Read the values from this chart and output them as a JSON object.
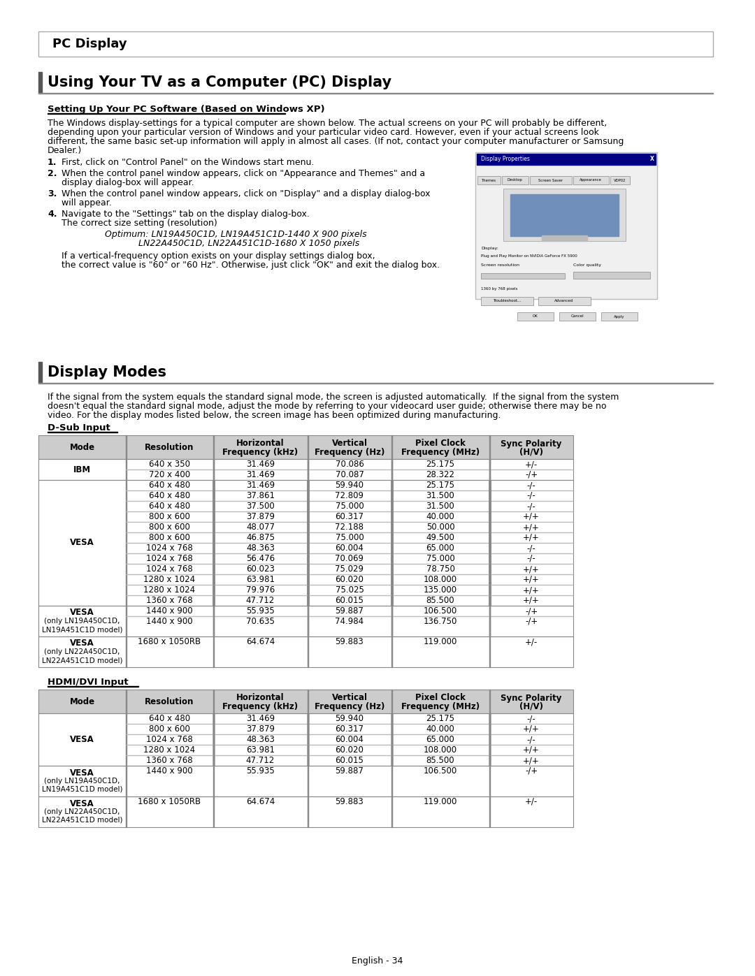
{
  "page_title": "PC Display",
  "section1_title": "Using Your TV as a Computer (PC) Display",
  "subsection1_title": "Setting Up Your PC Software (Based on Windows XP)",
  "paragraph1_lines": [
    "The Windows display-settings for a typical computer are shown below. The actual screens on your PC will probably be different,",
    "depending upon your particular version of Windows and your particular video card. However, even if your actual screens look",
    "different, the same basic set-up information will apply in almost all cases. (If not, contact your computer manufacturer or Samsung",
    "Dealer.)"
  ],
  "numbered_items": [
    [
      "First, click on \"Control Panel\" on the Windows start menu."
    ],
    [
      "When the control panel window appears, click on \"Appearance and Themes\" and a",
      "display dialog-box will appear."
    ],
    [
      "When the control panel window appears, click on \"Display\" and a display dialog-box",
      "will appear."
    ],
    [
      "Navigate to the \"Settings\" tab on the display dialog-box.",
      "The correct size setting (resolution)"
    ]
  ],
  "optimum_line1": "Optimum: LN19A450C1D, LN19A451C1D-1440 X 900 pixels",
  "optimum_line2": "            LN22A450C1D, LN22A451C1D-1680 X 1050 pixels",
  "vfreq_line1": "If a vertical-frequency option exists on your display settings dialog box,",
  "vfreq_line2": "the correct value is \"60\" or \"60 Hz\". Otherwise, just click \"OK\" and exit the dialog box.",
  "section2_title": "Display Modes",
  "display_modes_intro_lines": [
    "If the signal from the system equals the standard signal mode, the screen is adjusted automatically.  If the signal from the system",
    "doesn't equal the standard signal mode, adjust the mode by referring to your videocard user guide; otherwise there may be no",
    "video. For the display modes listed below, the screen image has been optimized during manufacturing."
  ],
  "dsub_label": "D-Sub Input",
  "hdmi_label": "HDMI/DVI Input",
  "table_headers": [
    "Mode",
    "Resolution",
    "Horizontal\nFrequency (kHz)",
    "Vertical\nFrequency (Hz)",
    "Pixel Clock\nFrequency (MHz)",
    "Sync Polarity\n(H/V)"
  ],
  "dsub_groups": [
    {
      "mode_lines": [
        "IBM"
      ],
      "rows": [
        [
          "640 x 350",
          "31.469",
          "70.086",
          "25.175",
          "+/-"
        ],
        [
          "720 x 400",
          "31.469",
          "70.087",
          "28.322",
          "-/+"
        ]
      ]
    },
    {
      "mode_lines": [
        "VESA"
      ],
      "rows": [
        [
          "640 x 480",
          "31.469",
          "59.940",
          "25.175",
          "-/-"
        ],
        [
          "640 x 480",
          "37.861",
          "72.809",
          "31.500",
          "-/-"
        ],
        [
          "640 x 480",
          "37.500",
          "75.000",
          "31.500",
          "-/-"
        ],
        [
          "800 x 600",
          "37.879",
          "60.317",
          "40.000",
          "+/+"
        ],
        [
          "800 x 600",
          "48.077",
          "72.188",
          "50.000",
          "+/+"
        ],
        [
          "800 x 600",
          "46.875",
          "75.000",
          "49.500",
          "+/+"
        ],
        [
          "1024 x 768",
          "48.363",
          "60.004",
          "65.000",
          "-/-"
        ],
        [
          "1024 x 768",
          "56.476",
          "70.069",
          "75.000",
          "-/-"
        ],
        [
          "1024 x 768",
          "60.023",
          "75.029",
          "78.750",
          "+/+"
        ],
        [
          "1280 x 1024",
          "63.981",
          "60.020",
          "108.000",
          "+/+"
        ],
        [
          "1280 x 1024",
          "79.976",
          "75.025",
          "135.000",
          "+/+"
        ],
        [
          "1360 x 768",
          "47.712",
          "60.015",
          "85.500",
          "+/+"
        ]
      ]
    },
    {
      "mode_lines": [
        "VESA",
        "(only LN19A450C1D,",
        "LN19A451C1D model)"
      ],
      "rows": [
        [
          "1440 x 900",
          "55.935",
          "59.887",
          "106.500",
          "-/+"
        ],
        [
          "1440 x 900",
          "70.635",
          "74.984",
          "136.750",
          "-/+"
        ]
      ]
    },
    {
      "mode_lines": [
        "VESA",
        "(only LN22A450C1D,",
        "LN22A451C1D model)"
      ],
      "rows": [
        [
          "1680 x 1050RB",
          "64.674",
          "59.883",
          "119.000",
          "+/-"
        ]
      ]
    }
  ],
  "hdmi_groups": [
    {
      "mode_lines": [
        "VESA"
      ],
      "rows": [
        [
          "640 x 480",
          "31.469",
          "59.940",
          "25.175",
          "-/-"
        ],
        [
          "800 x 600",
          "37.879",
          "60.317",
          "40.000",
          "+/+"
        ],
        [
          "1024 x 768",
          "48.363",
          "60.004",
          "65.000",
          "-/-"
        ],
        [
          "1280 x 1024",
          "63.981",
          "60.020",
          "108.000",
          "+/+"
        ],
        [
          "1360 x 768",
          "47.712",
          "60.015",
          "85.500",
          "+/+"
        ]
      ]
    },
    {
      "mode_lines": [
        "VESA",
        "(only LN19A450C1D,",
        "LN19A451C1D model)"
      ],
      "rows": [
        [
          "1440 x 900",
          "55.935",
          "59.887",
          "106.500",
          "-/+"
        ]
      ]
    },
    {
      "mode_lines": [
        "VESA",
        "(only LN22A450C1D,",
        "LN22A451C1D model)"
      ],
      "rows": [
        [
          "1680 x 1050RB",
          "64.674",
          "59.883",
          "119.000",
          "+/-"
        ]
      ]
    }
  ],
  "footer_text": "English - 34",
  "bg_color": "#ffffff",
  "text_color": "#000000",
  "header_bg": "#cccccc",
  "border_color": "#888888",
  "section_bar_color": "#555555",
  "line_color": "#888888"
}
